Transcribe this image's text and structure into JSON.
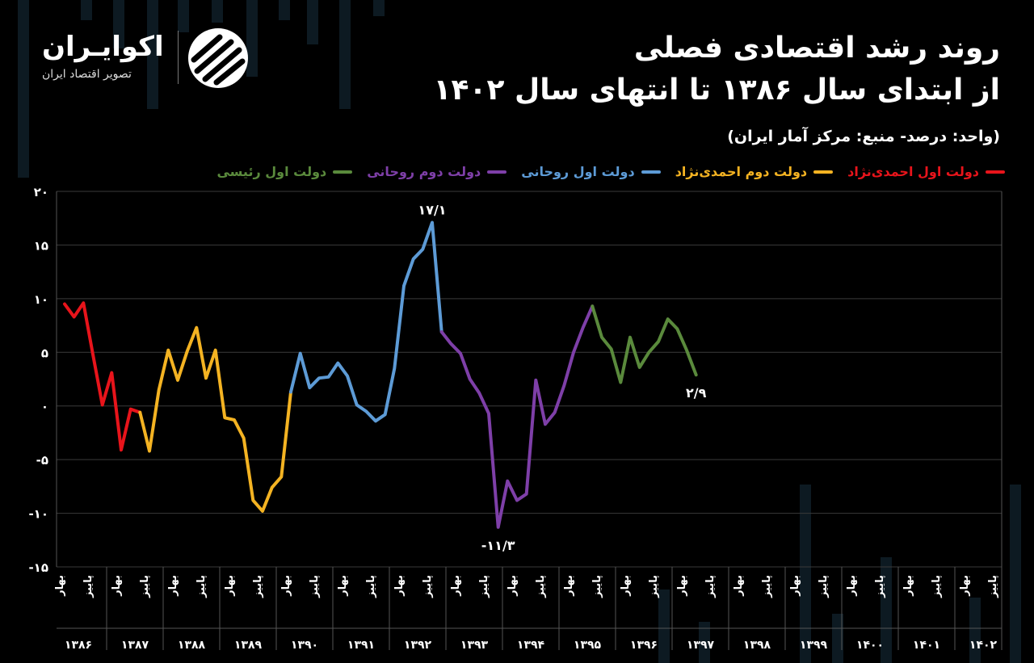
{
  "title": {
    "line1": "روند رشد اقتصادی فصلی",
    "line2": "از ابتدای سال ۱۳۸۶ تا انتهای سال ۱۴۰۲"
  },
  "subtitle": "(واحد: درصد- منبع: مرکز آمار ایران)",
  "brand": {
    "name": "اکوایـران",
    "tagline": "تصویر اقتصاد ایران",
    "logo_icon": "ecoiran-stripes-logo"
  },
  "colors": {
    "background": "#000000",
    "grid": "#3a3a3a",
    "bg_bars": "#0d1a22"
  },
  "chart_data": {
    "type": "line",
    "ylim": [
      -15,
      20
    ],
    "yticks": [
      "۲۰",
      "۱۵",
      "۱۰",
      "۵",
      "۰",
      "-۵",
      "-۱۰",
      "-۱۵"
    ],
    "ytick_values": [
      20,
      15,
      10,
      5,
      0,
      -5,
      -10,
      -15
    ],
    "season_labels": [
      "بهار",
      "پاییز"
    ],
    "years": [
      "۱۳۸۶",
      "۱۳۸۷",
      "۱۳۸۸",
      "۱۳۸۹",
      "۱۳۹۰",
      "۱۳۹۱",
      "۱۳۹۲",
      "۱۳۹۳",
      "۱۳۹۴",
      "۱۳۹۵",
      "۱۳۹۶",
      "۱۳۹۷",
      "۱۳۹۸",
      "۱۳۹۹",
      "۱۴۰۰",
      "۱۴۰۱",
      "۱۴۰۲"
    ],
    "grid": true,
    "series": [
      {
        "name": "دولت اول احمدی‌نژاد",
        "color": "#e8141b",
        "start": 0,
        "values": [
          9.5,
          8.3,
          9.6,
          4.8,
          0.1,
          3.1,
          -4.1,
          -0.3,
          -0.6
        ]
      },
      {
        "name": "دولت دوم احمدی‌نژاد",
        "color": "#f4b322",
        "start": 8,
        "values": [
          -0.6,
          -4.2,
          1.5,
          5.2,
          2.4,
          5.1,
          7.3,
          2.6,
          5.2,
          -1.1,
          -1.3,
          -3.0,
          -8.8,
          -9.8,
          -7.6,
          -6.6,
          1.3
        ]
      },
      {
        "name": "دولت اول روحانی",
        "color": "#5d9bd6",
        "start": 24,
        "values": [
          1.3,
          4.9,
          1.7,
          2.6,
          2.7,
          4.0,
          2.8,
          0.1,
          -0.5,
          -1.4,
          -0.8,
          3.5,
          11.2,
          13.7,
          14.6,
          17.1,
          6.9
        ]
      },
      {
        "name": "دولت دوم روحانی",
        "color": "#7e3fa8",
        "start": 40,
        "values": [
          6.9,
          5.8,
          4.9,
          2.5,
          1.2,
          -0.7,
          -11.3,
          -7.0,
          -8.8,
          -8.2,
          2.4,
          -1.7,
          -0.6,
          1.9,
          5.0,
          7.3,
          9.3
        ]
      },
      {
        "name": "دولت اول رئیسی",
        "color": "#5a8a3c",
        "start": 56,
        "values": [
          9.3,
          6.4,
          5.3,
          2.2,
          6.4,
          3.6,
          5.0,
          6.0,
          8.1,
          7.2,
          5.2,
          2.9
        ]
      }
    ],
    "annotations": [
      {
        "text": "۱۷/۱",
        "index": 39,
        "value": 17.1,
        "where": "above"
      },
      {
        "text": "-۱۱/۳",
        "index": 46,
        "value": -11.3,
        "where": "below"
      },
      {
        "text": "۲/۹",
        "index": 67,
        "value": 2.9,
        "where": "below"
      }
    ]
  }
}
